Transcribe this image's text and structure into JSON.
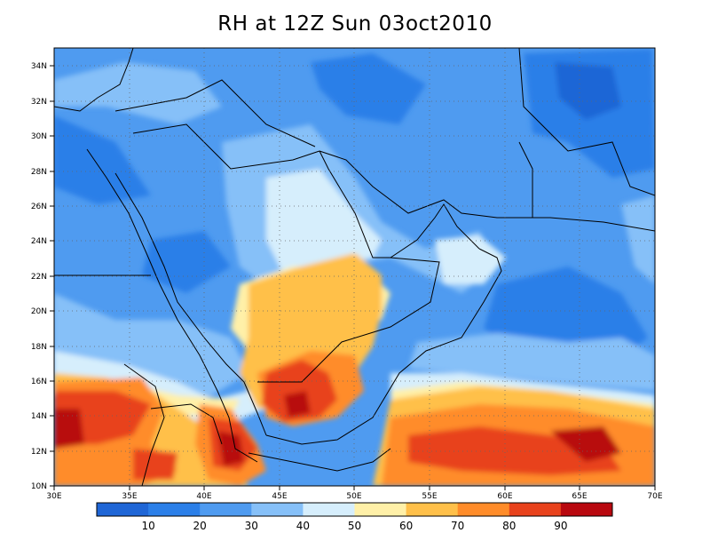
{
  "title": "RH at 12Z Sun 03oct2010",
  "map": {
    "lon_range": [
      30,
      70
    ],
    "lat_range": [
      10,
      35
    ],
    "lon_ticks": [
      "30E",
      "35E",
      "40E",
      "45E",
      "50E",
      "55E",
      "60E",
      "65E",
      "70E"
    ],
    "lat_ticks": [
      "10N",
      "12N",
      "14N",
      "16N",
      "18N",
      "20N",
      "22N",
      "24N",
      "26N",
      "28N",
      "30N",
      "32N",
      "34N"
    ],
    "grid": "dotted"
  },
  "colorbar": {
    "labels": [
      "10",
      "20",
      "30",
      "40",
      "50",
      "60",
      "70",
      "80",
      "90"
    ],
    "colors": [
      "#1f66d6",
      "#2b7fe8",
      "#4f9bf0",
      "#86c0f8",
      "#d6eefc",
      "#fff0a8",
      "#ffc04a",
      "#ff8c2a",
      "#e8421c",
      "#b8080f"
    ]
  }
}
